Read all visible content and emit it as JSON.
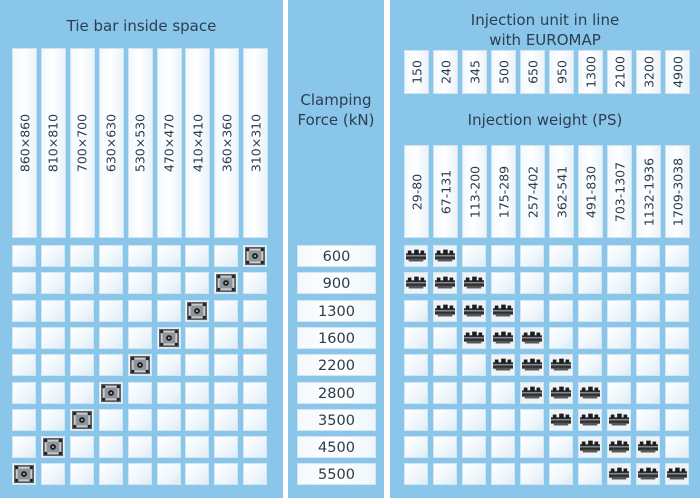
{
  "tie_bar": {
    "title": "Tie bar inside space",
    "columns": [
      "860×860",
      "810×810",
      "700×700",
      "630×630",
      "530×530",
      "470×470",
      "410×410",
      "360×360",
      "310×310"
    ],
    "icon": "tie-bar-plate-icon"
  },
  "clamping": {
    "title": "Clamping Force (kN)",
    "values": [
      "600",
      "900",
      "1300",
      "1600",
      "2200",
      "2800",
      "3500",
      "4500",
      "5500"
    ]
  },
  "injection_unit": {
    "title_line1": "Injection unit in line",
    "title_line2": "with EUROMAP",
    "values": [
      "150",
      "240",
      "345",
      "500",
      "650",
      "950",
      "1300",
      "2100",
      "3200",
      "4900"
    ]
  },
  "injection_weight": {
    "title": "Injection weight (PS)",
    "values": [
      "29-80",
      "67-131",
      "113-200",
      "175-289",
      "257-402",
      "362-541",
      "491-830",
      "703-1307",
      "1132-1936",
      "1709-3038"
    ],
    "icon": "injection-screw-icon"
  },
  "tie_bar_match_col": [
    8,
    7,
    6,
    5,
    4,
    3,
    2,
    1,
    0
  ],
  "injection_match_cols": [
    [
      0,
      1
    ],
    [
      0,
      1,
      2
    ],
    [
      1,
      2,
      3
    ],
    [
      2,
      3,
      4
    ],
    [
      3,
      4,
      5
    ],
    [
      4,
      5,
      6
    ],
    [
      5,
      6,
      7
    ],
    [
      6,
      7,
      8
    ],
    [
      7,
      8,
      9
    ]
  ],
  "colors": {
    "panel": "#89c6ea",
    "cell": "#f3f9fd",
    "text": "#2a3c4c"
  }
}
